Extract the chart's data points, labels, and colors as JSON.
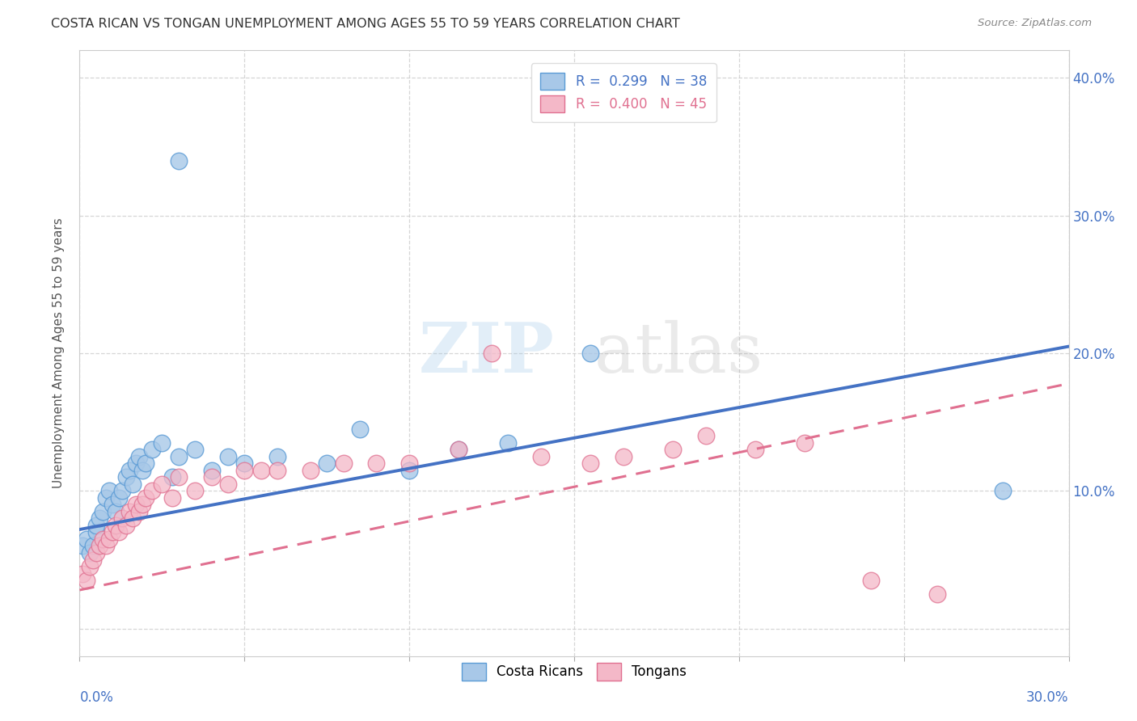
{
  "title": "COSTA RICAN VS TONGAN UNEMPLOYMENT AMONG AGES 55 TO 59 YEARS CORRELATION CHART",
  "source": "Source: ZipAtlas.com",
  "ylabel": "Unemployment Among Ages 55 to 59 years",
  "xlim": [
    0.0,
    0.3
  ],
  "ylim": [
    -0.02,
    0.42
  ],
  "y_ticks": [
    0.0,
    0.1,
    0.2,
    0.3,
    0.4
  ],
  "y_tick_labels": [
    "",
    "10.0%",
    "20.0%",
    "30.0%",
    "40.0%"
  ],
  "x_ticks": [
    0.0,
    0.05,
    0.1,
    0.15,
    0.2,
    0.25,
    0.3
  ],
  "legend_cr_label": "R =  0.299   N = 38",
  "legend_tg_label": "R =  0.400   N = 45",
  "cr_color": "#a8c8e8",
  "cr_edge": "#5b9bd5",
  "tg_color": "#f4b8c8",
  "tg_edge": "#e07090",
  "cr_line_color": "#4472c4",
  "tg_line_color": "#e07090",
  "background_color": "#ffffff",
  "grid_color": "#cccccc",
  "title_color": "#333333",
  "source_color": "#888888",
  "axis_label_color": "#4472c4",
  "watermark_color": "#c8dff0",
  "cr_scatter_x": [
    0.001,
    0.002,
    0.003,
    0.004,
    0.005,
    0.005,
    0.006,
    0.007,
    0.008,
    0.009,
    0.01,
    0.011,
    0.012,
    0.013,
    0.014,
    0.015,
    0.016,
    0.017,
    0.018,
    0.019,
    0.02,
    0.022,
    0.025,
    0.028,
    0.03,
    0.035,
    0.04,
    0.045,
    0.05,
    0.06,
    0.075,
    0.085,
    0.1,
    0.115,
    0.13,
    0.155,
    0.28,
    0.03
  ],
  "cr_scatter_y": [
    0.06,
    0.065,
    0.055,
    0.06,
    0.07,
    0.075,
    0.08,
    0.085,
    0.095,
    0.1,
    0.09,
    0.085,
    0.095,
    0.1,
    0.11,
    0.115,
    0.105,
    0.12,
    0.125,
    0.115,
    0.12,
    0.13,
    0.135,
    0.11,
    0.125,
    0.13,
    0.115,
    0.125,
    0.12,
    0.125,
    0.12,
    0.145,
    0.115,
    0.13,
    0.135,
    0.2,
    0.1,
    0.34
  ],
  "tg_scatter_x": [
    0.001,
    0.002,
    0.003,
    0.004,
    0.005,
    0.006,
    0.007,
    0.008,
    0.009,
    0.01,
    0.011,
    0.012,
    0.013,
    0.014,
    0.015,
    0.016,
    0.017,
    0.018,
    0.019,
    0.02,
    0.022,
    0.025,
    0.028,
    0.03,
    0.035,
    0.04,
    0.045,
    0.05,
    0.055,
    0.06,
    0.07,
    0.08,
    0.09,
    0.1,
    0.115,
    0.125,
    0.14,
    0.155,
    0.165,
    0.18,
    0.19,
    0.205,
    0.22,
    0.24,
    0.26
  ],
  "tg_scatter_y": [
    0.04,
    0.035,
    0.045,
    0.05,
    0.055,
    0.06,
    0.065,
    0.06,
    0.065,
    0.07,
    0.075,
    0.07,
    0.08,
    0.075,
    0.085,
    0.08,
    0.09,
    0.085,
    0.09,
    0.095,
    0.1,
    0.105,
    0.095,
    0.11,
    0.1,
    0.11,
    0.105,
    0.115,
    0.115,
    0.115,
    0.115,
    0.12,
    0.12,
    0.12,
    0.13,
    0.2,
    0.125,
    0.12,
    0.125,
    0.13,
    0.14,
    0.13,
    0.135,
    0.035,
    0.025
  ],
  "cr_line_x0": 0.0,
  "cr_line_y0": 0.072,
  "cr_line_x1": 0.3,
  "cr_line_y1": 0.205,
  "tg_line_x0": 0.0,
  "tg_line_y0": 0.028,
  "tg_line_x1": 0.3,
  "tg_line_y1": 0.178
}
